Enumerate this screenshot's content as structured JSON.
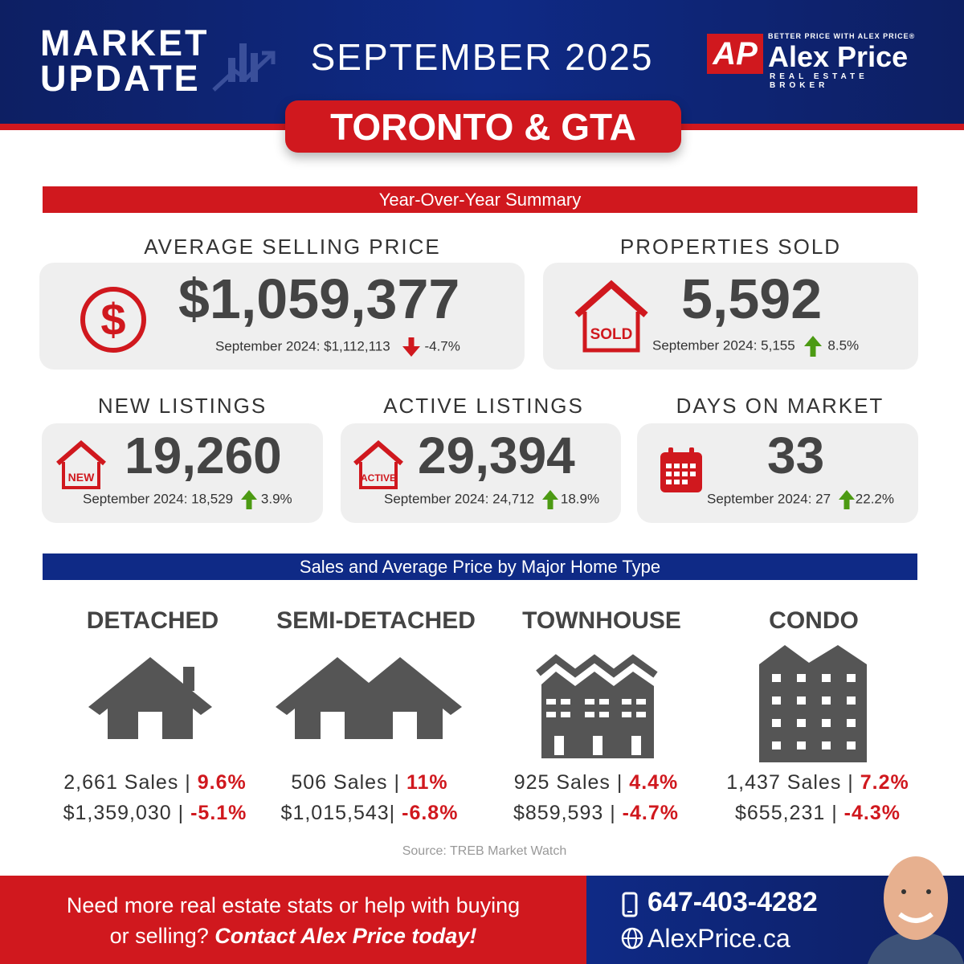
{
  "header": {
    "title_line1": "MARKET",
    "title_line2": "UPDATE",
    "month": "SEPTEMBER 2025",
    "region": "TORONTO & GTA"
  },
  "logo": {
    "mark": "AP",
    "tagline": "BETTER PRICE WITH ALEX PRICE®",
    "name": "Alex Price",
    "subtitle": "REAL ESTATE BROKER"
  },
  "colors": {
    "red": "#d0181e",
    "navy": "#0f2a86",
    "up": "#4c9a13",
    "icon": "#555555"
  },
  "summary": {
    "title": "Year-Over-Year Summary",
    "avg_price": {
      "label": "AVERAGE SELLING PRICE",
      "value": "$1,059,377",
      "compare": "September 2024: $1,112,113",
      "change": "-4.7%",
      "direction": "down",
      "icon": "dollar-icon"
    },
    "sold": {
      "label": "PROPERTIES SOLD",
      "value": "5,592",
      "compare": "September 2024: 5,155",
      "change": "8.5%",
      "direction": "up",
      "icon": "sold-house-icon",
      "badge": "SOLD"
    },
    "new_listings": {
      "label": "NEW LISTINGS",
      "value": "19,260",
      "compare": "September 2024: 18,529",
      "change": "3.9%",
      "direction": "up",
      "badge": "NEW"
    },
    "active_listings": {
      "label": "ACTIVE LISTINGS",
      "value": "29,394",
      "compare": "September 2024: 24,712",
      "change": "18.9%",
      "direction": "up",
      "badge": "ACTIVE"
    },
    "dom": {
      "label": "DAYS ON MARKET",
      "value": "33",
      "compare": "September 2024: 27",
      "change": "22.2%",
      "direction": "up",
      "icon": "calendar-icon"
    }
  },
  "home_types": {
    "title": "Sales and Average Price by Major Home Type",
    "items": [
      {
        "name": "DETACHED",
        "sales": "2,661 Sales |",
        "sales_change": "9.6%",
        "price": "$1,359,030 |",
        "price_change": "-5.1%"
      },
      {
        "name": "SEMI-DETACHED",
        "sales": "506 Sales |",
        "sales_change": "11%",
        "price": "$1,015,543|",
        "price_change": "-6.8%"
      },
      {
        "name": "TOWNHOUSE",
        "sales": "925 Sales |",
        "sales_change": "4.4%",
        "price": "$859,593 |",
        "price_change": "-4.7%"
      },
      {
        "name": "CONDO",
        "sales": "1,437 Sales |",
        "sales_change": "7.2%",
        "price": "$655,231 |",
        "price_change": "-4.3%"
      }
    ],
    "source": "Source: TREB Market Watch"
  },
  "footer": {
    "line1": "Need more real estate stats or help with buying",
    "line2_plain": "or selling?",
    "line2_emph": "Contact Alex Price today!",
    "phone": "647-403-4282",
    "website": "AlexPrice.ca"
  }
}
